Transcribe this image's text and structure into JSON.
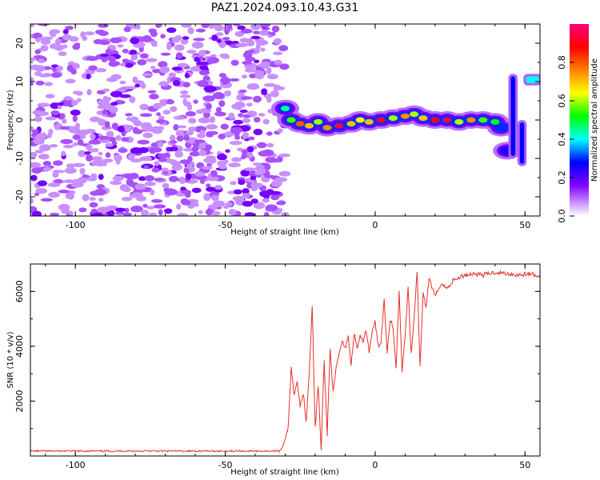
{
  "title": "PAZ1.2024.093.10.43.G31",
  "chart_data": [
    {
      "type": "heatmap",
      "xlabel": "Height of straight line (km)",
      "ylabel": "Frequency (Hz)",
      "xlim": [
        -115,
        55
      ],
      "ylim": [
        -25,
        25
      ],
      "xticks": [
        -100,
        -50,
        0,
        50
      ],
      "yticks": [
        -20,
        -10,
        0,
        10,
        20
      ],
      "colorbar": {
        "label": "Normalized spectral amplitude",
        "ticks": [
          0.0,
          0.2,
          0.4,
          0.6,
          0.8
        ],
        "tick_labels": [
          "0.0",
          "0.2",
          "0.4",
          "0.6",
          "0.8"
        ],
        "range": [
          0,
          1
        ],
        "colormap": [
          "#ffffff",
          "#8000ff",
          "#0000ff",
          "#00ffff",
          "#00ff00",
          "#ffff00",
          "#ff8000",
          "#ff0000",
          "#ff0080"
        ]
      },
      "noise_region_x": [
        -115,
        -30
      ],
      "noise_level": 0.25,
      "carrier_track": [
        {
          "x": -30,
          "y": 3,
          "v": 0.45
        },
        {
          "x": -28,
          "y": 0,
          "v": 0.55
        },
        {
          "x": -25,
          "y": -1,
          "v": 0.8
        },
        {
          "x": -22,
          "y": -1.5,
          "v": 0.7
        },
        {
          "x": -19,
          "y": -0.5,
          "v": 0.6
        },
        {
          "x": -16,
          "y": -2,
          "v": 0.75
        },
        {
          "x": -12,
          "y": -1.5,
          "v": 0.95
        },
        {
          "x": -8,
          "y": -1,
          "v": 0.7
        },
        {
          "x": -5,
          "y": 0,
          "v": 0.65
        },
        {
          "x": -2,
          "y": -0.5,
          "v": 0.7
        },
        {
          "x": 2,
          "y": 0,
          "v": 0.9
        },
        {
          "x": 6,
          "y": 0.5,
          "v": 0.6
        },
        {
          "x": 10,
          "y": 1,
          "v": 0.75
        },
        {
          "x": 13,
          "y": 1.5,
          "v": 0.6
        },
        {
          "x": 16,
          "y": 0.5,
          "v": 0.7
        },
        {
          "x": 20,
          "y": 0,
          "v": 0.9
        },
        {
          "x": 24,
          "y": 0,
          "v": 0.95
        },
        {
          "x": 28,
          "y": -0.5,
          "v": 0.6
        },
        {
          "x": 32,
          "y": 0,
          "v": 0.75
        },
        {
          "x": 36,
          "y": 0,
          "v": 0.55
        },
        {
          "x": 40,
          "y": -0.5,
          "v": 0.5
        },
        {
          "x": 42,
          "y": -2,
          "v": 0.3
        },
        {
          "x": 44,
          "y": -8,
          "v": 0.25
        }
      ],
      "side_bands": [
        {
          "x": [
            45,
            47
          ],
          "y": [
            -10,
            12
          ],
          "v": 0.28
        },
        {
          "x": [
            48,
            50
          ],
          "y": [
            -12,
            0
          ],
          "v": 0.28
        },
        {
          "x": [
            50,
            55
          ],
          "y": [
            9,
            12
          ],
          "v": 0.4
        }
      ]
    },
    {
      "type": "line",
      "xlabel": "Height of straight line (km)",
      "ylabel": "SNR (10 * v/v)",
      "xlim": [
        -115,
        55
      ],
      "ylim": [
        0,
        7000
      ],
      "xticks": [
        -100,
        -50,
        0,
        50
      ],
      "yticks": [
        2000,
        4000,
        6000
      ],
      "color": "#e8302a",
      "series": [
        {
          "x": [
            -115,
            -32,
            -31,
            -29,
            -28,
            -27,
            -26,
            -25,
            -24,
            -23,
            -22,
            -21,
            -20,
            -19,
            -18,
            -17,
            -16,
            -15,
            -14,
            -13,
            -12,
            -11,
            -10,
            -9,
            -8,
            -7,
            -6,
            -5,
            -4,
            -3,
            -2,
            -1,
            0,
            1,
            2,
            3,
            4,
            5,
            6,
            7,
            8,
            9,
            10,
            11,
            12,
            13,
            14,
            15,
            16,
            17,
            18,
            20,
            22,
            24,
            26,
            28,
            30,
            33,
            36,
            40,
            44,
            48,
            52,
            55
          ],
          "y": [
            180,
            180,
            300,
            1000,
            3300,
            2200,
            2800,
            1800,
            2300,
            1300,
            3000,
            5500,
            1000,
            2600,
            200,
            3500,
            800,
            3900,
            2300,
            3200,
            3700,
            4200,
            3900,
            4400,
            3300,
            4500,
            3900,
            4400,
            4100,
            4600,
            3800,
            4500,
            4900,
            4000,
            4200,
            5700,
            3800,
            5000,
            4700,
            3200,
            6000,
            3100,
            4400,
            6200,
            3700,
            5000,
            6700,
            3200,
            6000,
            5400,
            6500,
            5800,
            6300,
            6100,
            6400,
            6500,
            6600,
            6650,
            6600,
            6700,
            6650,
            6600,
            6650,
            6500
          ]
        }
      ]
    }
  ]
}
